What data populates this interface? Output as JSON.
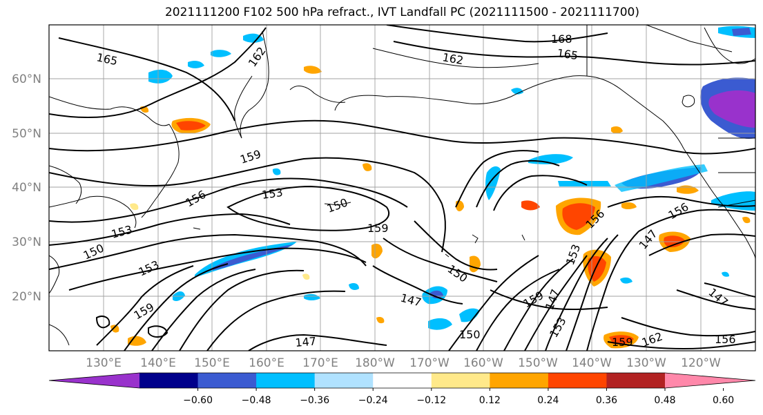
{
  "title": "2021111200 F102 500 hPa refract., IVT Landfall PC (2021111500 - 2021111700)",
  "map": {
    "lat_labels": [
      "60°N",
      "50°N",
      "40°N",
      "30°N",
      "20°N"
    ],
    "lon_labels": [
      "130°E",
      "140°E",
      "150°E",
      "160°E",
      "170°E",
      "180°W",
      "170°W",
      "160°W",
      "150°W",
      "140°W",
      "130°W",
      "120°W"
    ],
    "contour_labels": [
      "165",
      "162",
      "168",
      "165",
      "162",
      "159",
      "153",
      "156",
      "150",
      "153",
      "150",
      "153",
      "159",
      "150",
      "147",
      "159",
      "156",
      "156",
      "147",
      "153",
      "147",
      "153",
      "159",
      "162",
      "156",
      "147",
      "150",
      "159",
      "147"
    ]
  },
  "colorbar": {
    "colors": [
      "#9932cc",
      "#00008b",
      "#3b5bd1",
      "#00bfff",
      "#b0e2ff",
      "#ffffff",
      "#ffe98a",
      "#ffa500",
      "#ff4500",
      "#b22222",
      "#ff88aa"
    ],
    "tick_labels": [
      "−0.60",
      "−0.48",
      "−0.36",
      "−0.24",
      "−0.12",
      "0.12",
      "0.24",
      "0.36",
      "0.48",
      "0.60"
    ]
  }
}
